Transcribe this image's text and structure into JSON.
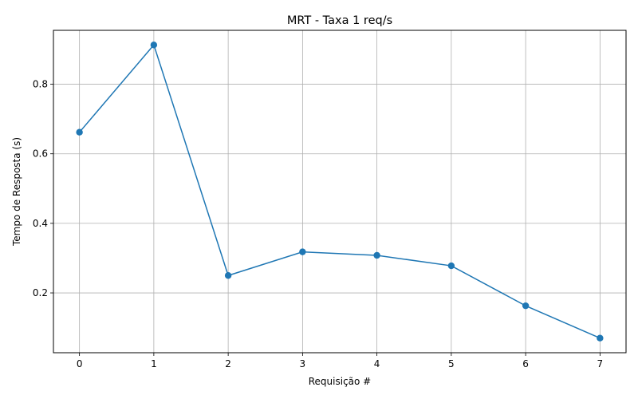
{
  "chart_data": {
    "type": "line",
    "title": "MRT - Taxa 1 req/s",
    "xlabel": "Requisição #",
    "ylabel": "Tempo de Resposta (s)",
    "x": [
      0,
      1,
      2,
      3,
      4,
      5,
      6,
      7
    ],
    "series": [
      {
        "values": [
          0.662,
          0.913,
          0.25,
          0.318,
          0.308,
          0.278,
          0.163,
          0.07
        ],
        "color": "#1f77b4",
        "marker": "circle"
      }
    ],
    "xticks": [
      "0",
      "1",
      "2",
      "3",
      "4",
      "5",
      "6",
      "7"
    ],
    "yticks": [
      "0.2",
      "0.4",
      "0.6",
      "0.8"
    ],
    "xlim": [
      -0.35,
      7.35
    ],
    "ylim": [
      0.028,
      0.955
    ],
    "grid": true,
    "legend": "none"
  }
}
